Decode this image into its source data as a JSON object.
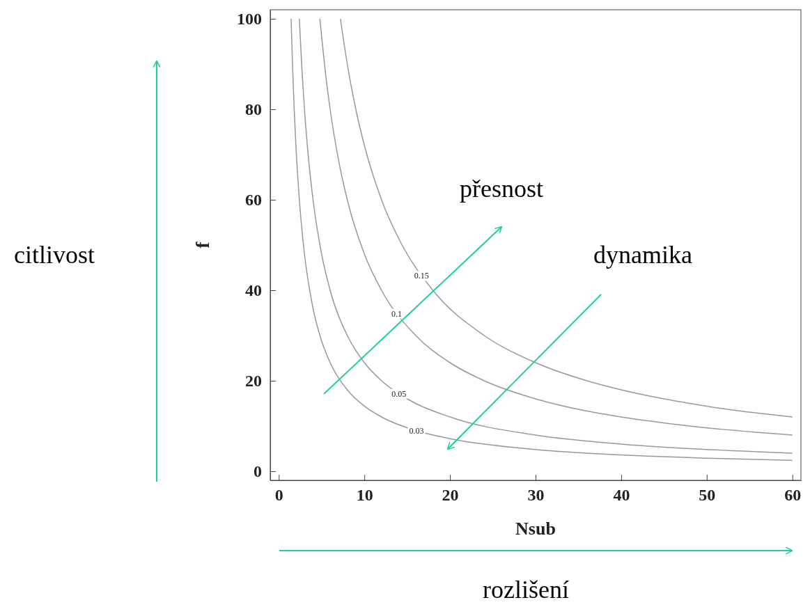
{
  "chart_data": {
    "type": "line",
    "xlabel": "Nsub",
    "ylabel": "f",
    "xlim": [
      -1,
      61
    ],
    "ylim": [
      -2,
      102
    ],
    "xticks": [
      0,
      10,
      20,
      30,
      40,
      50,
      60
    ],
    "yticks": [
      0,
      20,
      40,
      60,
      80,
      100
    ],
    "grid": false,
    "legend": false,
    "marker": "none",
    "line_style": "solid",
    "series": [
      {
        "name": "0.03",
        "color": "#999999",
        "x": [
          1.44,
          1.6,
          1.8,
          2,
          2.4,
          3,
          4,
          5,
          6,
          8,
          10,
          12,
          16,
          20,
          30,
          40,
          50,
          60
        ],
        "values": [
          100,
          90,
          80,
          72,
          60,
          48,
          36,
          28.8,
          24,
          18,
          14.4,
          12,
          9,
          7.2,
          4.8,
          3.6,
          2.9,
          2.4
        ]
      },
      {
        "name": "0.05",
        "color": "#999999",
        "x": [
          2.4,
          2.7,
          3,
          3.5,
          4,
          5,
          6,
          8,
          10,
          12,
          15,
          20,
          30,
          40,
          50,
          60
        ],
        "values": [
          100,
          88.9,
          80,
          68.6,
          60,
          48,
          40,
          30,
          24,
          20,
          16,
          12,
          8,
          6,
          4.8,
          4
        ]
      },
      {
        "name": "0.1",
        "color": "#999999",
        "x": [
          4.8,
          5.5,
          6,
          7,
          8,
          10,
          12,
          16,
          20,
          24,
          30,
          36,
          40,
          48,
          60
        ],
        "values": [
          100,
          87.3,
          80,
          68.6,
          60,
          48,
          40,
          30,
          24,
          20,
          16,
          13.3,
          12,
          10,
          8
        ]
      },
      {
        "name": "0.15",
        "color": "#999999",
        "x": [
          7.2,
          8,
          9,
          10,
          12,
          14.4,
          18,
          24,
          30,
          36,
          40,
          45,
          48,
          52,
          60
        ],
        "values": [
          100,
          90,
          80,
          72,
          60,
          50,
          40,
          30,
          24,
          20,
          18,
          16,
          15,
          13.8,
          12
        ]
      }
    ],
    "annotations": [
      "citlivost",
      "přesnost",
      "dynamika",
      "rozlišení"
    ]
  }
}
